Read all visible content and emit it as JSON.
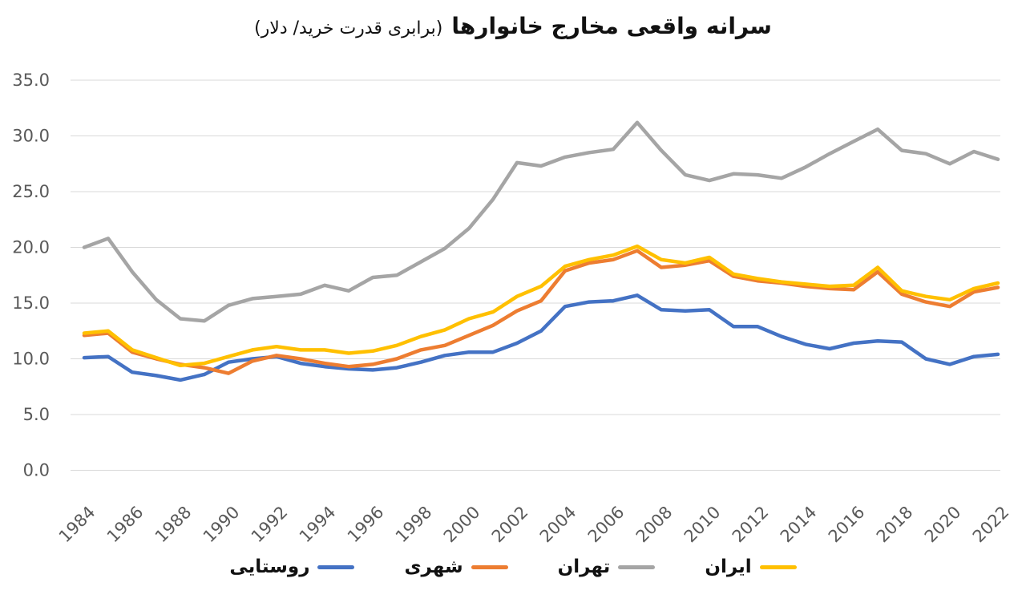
{
  "title": {
    "main": "سرانه واقعی مخارج خانوارها",
    "sub": "(برابری قدرت خرید/ دلار)"
  },
  "chart_data": {
    "type": "line",
    "x": [
      1984,
      1985,
      1986,
      1987,
      1988,
      1989,
      1990,
      1991,
      1992,
      1993,
      1994,
      1995,
      1996,
      1997,
      1998,
      1999,
      2000,
      2001,
      2002,
      2003,
      2004,
      2005,
      2006,
      2007,
      2008,
      2009,
      2010,
      2011,
      2012,
      2013,
      2014,
      2015,
      2016,
      2017,
      2018,
      2019,
      2020,
      2021,
      2022
    ],
    "x_tick_labels": [
      "1984",
      "1986",
      "1988",
      "1990",
      "1992",
      "1994",
      "1996",
      "1998",
      "2000",
      "2002",
      "2004",
      "2006",
      "2008",
      "2010",
      "2012",
      "2014",
      "2016",
      "2018",
      "2020",
      "2022"
    ],
    "y_ticks": [
      0,
      5,
      10,
      15,
      20,
      25,
      30,
      35
    ],
    "y_tick_labels": [
      "0.0",
      "5.0",
      "10.0",
      "15.0",
      "20.0",
      "25.0",
      "30.0",
      "35.0"
    ],
    "ylim": [
      0,
      35
    ],
    "grid": "horizontal",
    "legend_position": "bottom",
    "series": [
      {
        "name": "روستایی",
        "key": "rural",
        "color": "#4472C4",
        "values": [
          10.1,
          10.2,
          8.8,
          8.5,
          8.1,
          8.6,
          9.7,
          10.0,
          10.2,
          9.6,
          9.3,
          9.1,
          9.0,
          9.2,
          9.7,
          10.3,
          10.6,
          10.6,
          11.4,
          12.5,
          14.7,
          15.1,
          15.2,
          15.7,
          14.4,
          14.3,
          14.4,
          12.9,
          12.9,
          12.0,
          11.3,
          10.9,
          11.4,
          11.6,
          11.5,
          10.0,
          9.5,
          10.2,
          10.4
        ]
      },
      {
        "name": "شهری",
        "key": "urban",
        "color": "#ED7D31",
        "values": [
          12.1,
          12.3,
          10.6,
          10.0,
          9.5,
          9.2,
          8.7,
          9.8,
          10.3,
          10.0,
          9.6,
          9.3,
          9.5,
          10.0,
          10.8,
          11.2,
          12.1,
          13.0,
          14.3,
          15.2,
          17.9,
          18.6,
          18.9,
          19.7,
          18.2,
          18.4,
          18.8,
          17.4,
          17.0,
          16.8,
          16.5,
          16.3,
          16.2,
          17.8,
          15.8,
          15.1,
          14.7,
          16.0,
          16.4
        ]
      },
      {
        "name": "تهران",
        "key": "tehran",
        "color": "#A5A5A5",
        "values": [
          20.0,
          20.8,
          17.8,
          15.3,
          13.6,
          13.4,
          14.8,
          15.4,
          15.6,
          15.8,
          16.6,
          16.1,
          17.3,
          17.5,
          18.7,
          19.9,
          21.7,
          24.3,
          27.6,
          27.3,
          28.1,
          28.5,
          28.8,
          31.2,
          28.7,
          26.5,
          26.0,
          26.6,
          26.5,
          26.2,
          27.2,
          28.4,
          29.5,
          30.6,
          28.7,
          28.4,
          27.5,
          28.6,
          27.9
        ]
      },
      {
        "name": "ایران",
        "key": "iran",
        "color": "#FFC000",
        "values": [
          12.3,
          12.5,
          10.8,
          10.1,
          9.4,
          9.6,
          10.2,
          10.8,
          11.1,
          10.8,
          10.8,
          10.5,
          10.7,
          11.2,
          12.0,
          12.6,
          13.6,
          14.2,
          15.6,
          16.5,
          18.3,
          18.9,
          19.3,
          20.1,
          18.9,
          18.6,
          19.1,
          17.6,
          17.2,
          16.9,
          16.7,
          16.5,
          16.6,
          18.2,
          16.1,
          15.6,
          15.3,
          16.3,
          16.8
        ]
      }
    ]
  }
}
